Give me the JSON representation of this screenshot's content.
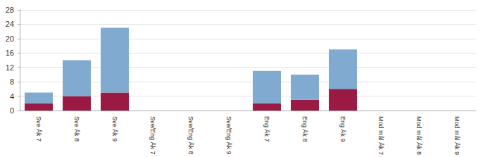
{
  "chart_data": {
    "type": "bar",
    "stacked": true,
    "grid": true,
    "categories": [
      "Sve Åk 7",
      "Sve Åk 8",
      "Sve Åk 9",
      "Sve/Eng Åk 7",
      "Sve/Eng Åk 8",
      "Sve/Eng Åk 9",
      "Eng Åk 7",
      "Eng Åk 8",
      "Eng Åk 9",
      "Mod mål Åk 7",
      "Mod mål Åk 8",
      "Mod mål Åk 9"
    ],
    "series": [
      {
        "color": "#9a1a44",
        "values": [
          2,
          4,
          5,
          0,
          0,
          0,
          2,
          3,
          6,
          0,
          0,
          0
        ]
      },
      {
        "color": "#80aad0",
        "values": [
          3,
          10,
          18,
          0,
          0,
          0,
          9,
          7,
          11,
          0,
          0,
          0
        ]
      }
    ],
    "ylim": [
      0,
      28
    ],
    "yticks": [
      0,
      4,
      8,
      12,
      16,
      20,
      24,
      28
    ]
  }
}
